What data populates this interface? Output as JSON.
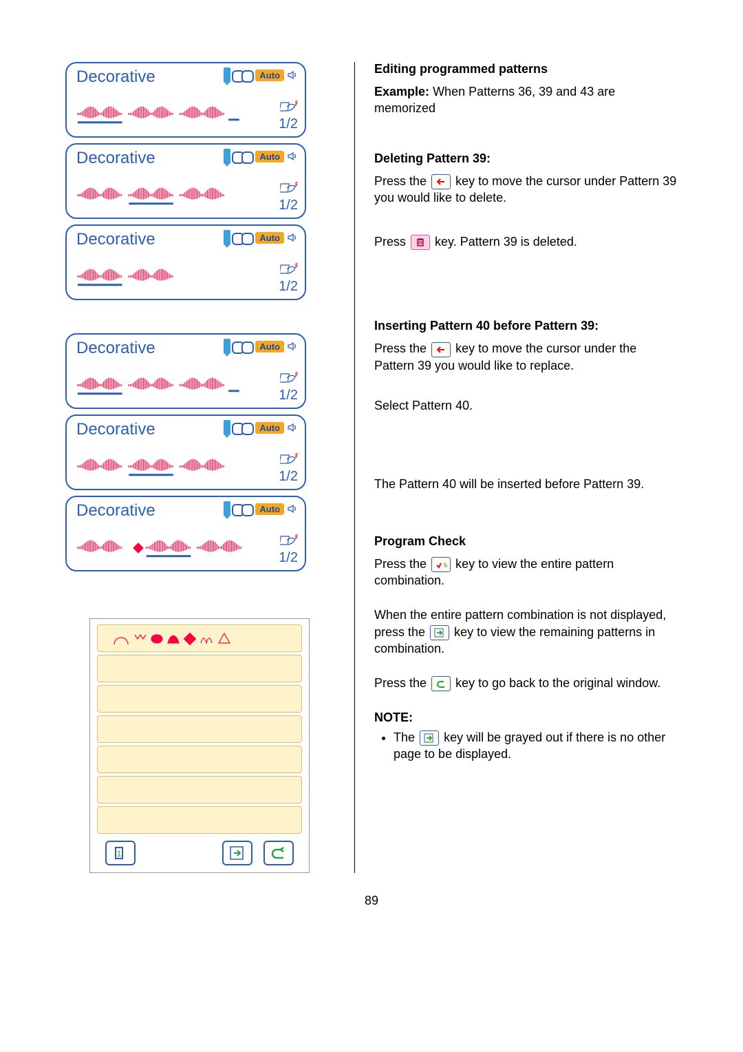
{
  "page_number": "89",
  "panel": {
    "title": "Decorative",
    "auto_label": "Auto",
    "side_f": "F",
    "fraction": "1/2"
  },
  "panel_variants": [
    {
      "waves": 3,
      "cursor_after": 2,
      "underline": 0,
      "insert_shape": false
    },
    {
      "waves": 3,
      "cursor_after": null,
      "underline": 1,
      "insert_shape": false
    },
    {
      "waves": 2,
      "cursor_after": null,
      "underline": 0,
      "insert_shape": false
    },
    {
      "waves": 3,
      "cursor_after": 2,
      "underline": 0,
      "insert_shape": false
    },
    {
      "waves": 3,
      "cursor_after": null,
      "underline": 1,
      "insert_shape": false
    },
    {
      "waves": 3,
      "cursor_after": null,
      "underline": 1,
      "insert_shape": true
    }
  ],
  "colors": {
    "frame": "#2b5fb3",
    "wave": "#ff0040",
    "wave_underline": "#2b5fb3",
    "badge_bg": "#f5a623",
    "prog_row_bg": "#fff3cc"
  },
  "right": {
    "h1": "Editing programmed patterns",
    "example_label": "Example:",
    "example_text": "When Patterns 36, 39 and 43 are memorized",
    "del_h": "Deleting Pattern 39:",
    "del_p1a": "Press the",
    "del_p1b": "key to move the cursor under Pattern 39 you would like to delete.",
    "del_p2a": "Press",
    "del_p2b": "key. Pattern 39 is deleted.",
    "ins_h": "Inserting Pattern 40 before Pattern 39:",
    "ins_p1a": "Press the",
    "ins_p1b": "key to move the cursor under the Pattern 39 you would like to replace.",
    "ins_p2": "Select Pattern 40.",
    "ins_p3": "The Pattern 40 will be inserted before Pattern 39.",
    "pc_h": "Program Check",
    "pc_p1a": "Press the",
    "pc_p1b": "key to view the entire pattern combination.",
    "pc_p2a": "When the entire pattern combination is not displayed, press the",
    "pc_p2b": "key to view the remaining patterns in combination.",
    "pc_p3a": "Press the",
    "pc_p3b": "key to go back to the original window.",
    "note_h": "NOTE:",
    "note_bul_a": "The",
    "note_bul_b": "key will be grayed out if there is no other page to be displayed."
  }
}
